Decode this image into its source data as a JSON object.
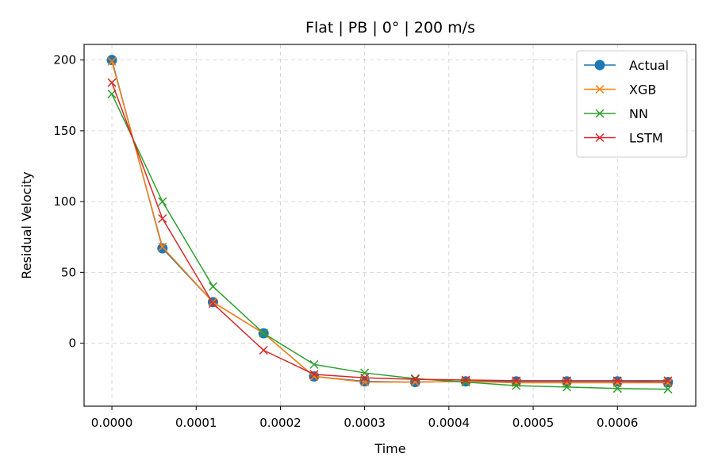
{
  "chart_data": {
    "type": "line",
    "title": "Flat | PB | 0° | 200 m/s",
    "xlabel": "Time",
    "ylabel": "Residual Velocity",
    "xlim": [
      -3.3e-05,
      0.000693
    ],
    "ylim": [
      -44.5,
      211
    ],
    "x_ticks": [
      0.0,
      0.0001,
      0.0002,
      0.0003,
      0.0004,
      0.0005,
      0.0006
    ],
    "x_tick_labels": [
      "0.0000",
      "0.0001",
      "0.0002",
      "0.0003",
      "0.0004",
      "0.0005",
      "0.0006"
    ],
    "y_ticks": [
      0,
      50,
      100,
      150,
      200
    ],
    "y_tick_labels": [
      "0",
      "50",
      "100",
      "150",
      "200"
    ],
    "grid": true,
    "legend_position": "top-right",
    "x": [
      0.0,
      6e-05,
      0.00012,
      0.00018,
      0.00024,
      0.0003,
      0.00036,
      0.00042,
      0.00048,
      0.00054,
      0.0006,
      0.00066
    ],
    "series": [
      {
        "name": "Actual",
        "color": "#1f77b4",
        "marker": "circle",
        "values": [
          200,
          67,
          29,
          7,
          -23.5,
          -27,
          -27.5,
          -27,
          -27,
          -27,
          -27,
          -27.5
        ]
      },
      {
        "name": "XGB",
        "color": "#ff7f0e",
        "marker": "x",
        "values": [
          199,
          68,
          29,
          7,
          -23.5,
          -27.5,
          -27.5,
          -27,
          -28,
          -28,
          -28,
          -28
        ]
      },
      {
        "name": "NN",
        "color": "#2ca02c",
        "marker": "x",
        "values": [
          176,
          100,
          40,
          7,
          -15,
          -21,
          -25,
          -27.5,
          -30,
          -31,
          -32,
          -32.5
        ]
      },
      {
        "name": "LSTM",
        "color": "#d62728",
        "marker": "x",
        "values": [
          184,
          88,
          28,
          -5,
          -22,
          -24.5,
          -25.5,
          -26,
          -26.5,
          -26.5,
          -26.5,
          -26.5
        ]
      }
    ]
  }
}
